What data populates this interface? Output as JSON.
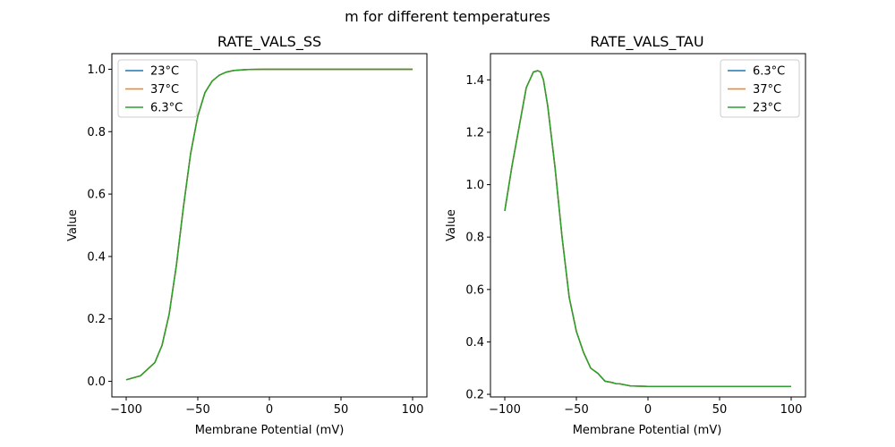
{
  "figure": {
    "suptitle": "m for different temperatures"
  },
  "chart_data": [
    {
      "type": "line",
      "title": "RATE_VALS_SS",
      "xlabel": "Membrane Potential (mV)",
      "ylabel": "Value",
      "xlim": [
        -110,
        110
      ],
      "ylim": [
        -0.05,
        1.05
      ],
      "xticks": [
        "−100",
        "−50",
        "0",
        "50",
        "100"
      ],
      "xtick_values": [
        -100,
        -50,
        0,
        50,
        100
      ],
      "yticks": [
        "0.0",
        "0.2",
        "0.4",
        "0.6",
        "0.8",
        "1.0"
      ],
      "ytick_values": [
        0.0,
        0.2,
        0.4,
        0.6,
        0.8,
        1.0
      ],
      "grid": false,
      "legend_position": "upper left",
      "x": [
        -100,
        -90,
        -80,
        -75,
        -70,
        -65,
        -60,
        -55,
        -50,
        -45,
        -40,
        -35,
        -30,
        -25,
        -20,
        -15,
        -10,
        -5,
        0,
        10,
        20,
        40,
        60,
        80,
        100
      ],
      "series": [
        {
          "name": "23°C",
          "color": "#1f77b4",
          "values": [
            0.005,
            0.018,
            0.06,
            0.115,
            0.215,
            0.37,
            0.56,
            0.73,
            0.85,
            0.925,
            0.962,
            0.981,
            0.991,
            0.996,
            0.998,
            0.999,
            0.9995,
            1.0,
            1.0,
            1.0,
            1.0,
            1.0,
            1.0,
            1.0,
            1.0
          ]
        },
        {
          "name": "37°C",
          "color": "#ff7f0e",
          "values": [
            0.005,
            0.018,
            0.06,
            0.115,
            0.215,
            0.37,
            0.56,
            0.73,
            0.85,
            0.925,
            0.962,
            0.981,
            0.991,
            0.996,
            0.998,
            0.999,
            0.9995,
            1.0,
            1.0,
            1.0,
            1.0,
            1.0,
            1.0,
            1.0,
            1.0
          ]
        },
        {
          "name": "6.3°C",
          "color": "#2ca02c",
          "values": [
            0.005,
            0.018,
            0.06,
            0.115,
            0.215,
            0.37,
            0.56,
            0.73,
            0.85,
            0.925,
            0.962,
            0.981,
            0.991,
            0.996,
            0.998,
            0.999,
            0.9995,
            1.0,
            1.0,
            1.0,
            1.0,
            1.0,
            1.0,
            1.0,
            1.0
          ]
        }
      ]
    },
    {
      "type": "line",
      "title": "RATE_VALS_TAU",
      "xlabel": "Membrane Potential (mV)",
      "ylabel": "Value",
      "xlim": [
        -110,
        110
      ],
      "ylim": [
        0.19,
        1.5
      ],
      "xticks": [
        "−100",
        "−50",
        "0",
        "50",
        "100"
      ],
      "xtick_values": [
        -100,
        -50,
        0,
        50,
        100
      ],
      "yticks": [
        "0.2",
        "0.4",
        "0.6",
        "0.8",
        "1.0",
        "1.2",
        "1.4"
      ],
      "ytick_values": [
        0.2,
        0.4,
        0.6,
        0.8,
        1.0,
        1.2,
        1.4
      ],
      "grid": false,
      "legend_position": "upper right",
      "x": [
        -100,
        -95,
        -90,
        -85,
        -80,
        -77,
        -75,
        -73,
        -70,
        -65,
        -60,
        -55,
        -50,
        -45,
        -40,
        -35,
        -30,
        -25,
        -22,
        -20,
        -15,
        -12,
        -10,
        -5,
        0,
        20,
        50,
        100
      ],
      "series": [
        {
          "name": "6.3°C",
          "color": "#1f77b4",
          "values": [
            0.9,
            1.07,
            1.22,
            1.37,
            1.43,
            1.435,
            1.43,
            1.4,
            1.3,
            1.07,
            0.8,
            0.57,
            0.44,
            0.36,
            0.3,
            0.28,
            0.25,
            0.245,
            0.24,
            0.24,
            0.235,
            0.232,
            0.232,
            0.231,
            0.23,
            0.23,
            0.23,
            0.23
          ]
        },
        {
          "name": "37°C",
          "color": "#ff7f0e",
          "values": [
            0.9,
            1.07,
            1.22,
            1.37,
            1.43,
            1.435,
            1.43,
            1.4,
            1.3,
            1.07,
            0.8,
            0.57,
            0.44,
            0.36,
            0.3,
            0.28,
            0.25,
            0.245,
            0.24,
            0.24,
            0.235,
            0.232,
            0.232,
            0.231,
            0.23,
            0.23,
            0.23,
            0.23
          ]
        },
        {
          "name": "23°C",
          "color": "#2ca02c",
          "values": [
            0.9,
            1.07,
            1.22,
            1.37,
            1.43,
            1.435,
            1.43,
            1.4,
            1.3,
            1.07,
            0.8,
            0.57,
            0.44,
            0.36,
            0.3,
            0.28,
            0.25,
            0.245,
            0.24,
            0.24,
            0.235,
            0.232,
            0.232,
            0.231,
            0.23,
            0.23,
            0.23,
            0.23
          ]
        }
      ]
    }
  ]
}
